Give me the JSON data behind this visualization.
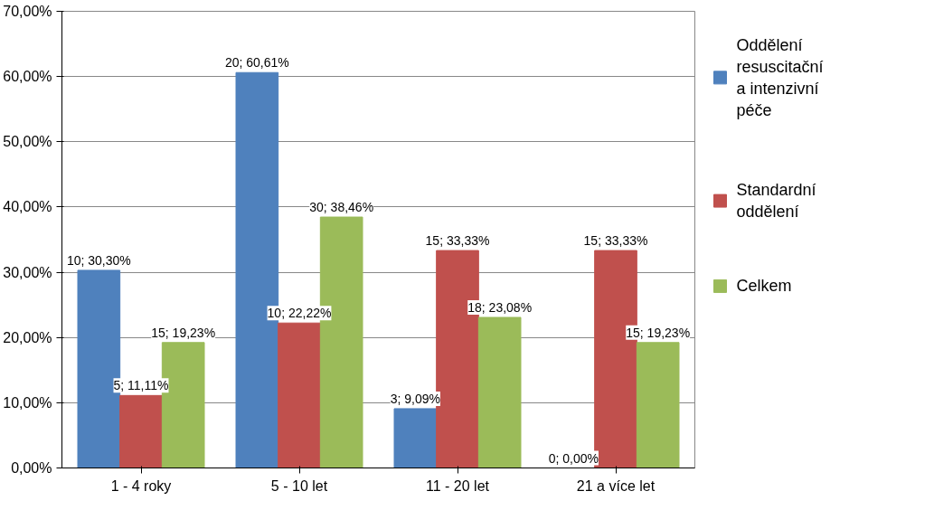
{
  "chart_data": {
    "type": "bar",
    "categories": [
      "1 - 4 roky",
      "5 - 10 let",
      "11 - 20 let",
      "21 a více let"
    ],
    "series": [
      {
        "name": "Oddělení resuscitační a intenzivní péče",
        "color": "#4f81bd",
        "values": [
          30.3,
          60.61,
          9.09,
          0.0
        ],
        "value_labels": [
          "10; 30,30%",
          "20; 60,61%",
          "3; 9,09%",
          "0; 0,00%"
        ]
      },
      {
        "name": "Standardní oddělení",
        "color": "#c0504d",
        "values": [
          11.11,
          22.22,
          33.33,
          33.33
        ],
        "value_labels": [
          "5; 11,11%",
          "10; 22,22%",
          "15; 33,33%",
          "15; 33,33%"
        ]
      },
      {
        "name": "Celkem",
        "color": "#9bbb59",
        "values": [
          19.23,
          38.46,
          23.08,
          19.23
        ],
        "value_labels": [
          "15; 19,23%",
          "30; 38,46%",
          "18; 23,08%",
          "15; 19,23%"
        ]
      }
    ],
    "ylim": [
      0,
      70
    ],
    "yticks": [
      {
        "value": 0,
        "label": "0,00%"
      },
      {
        "value": 10,
        "label": "10,00%"
      },
      {
        "value": 20,
        "label": "20,00%"
      },
      {
        "value": 30,
        "label": "30,00%"
      },
      {
        "value": 40,
        "label": "40,00%"
      },
      {
        "value": 50,
        "label": "50,00%"
      },
      {
        "value": 60,
        "label": "60,00%"
      },
      {
        "value": 70,
        "label": "70,00%"
      }
    ],
    "grid": "y",
    "legend": "right"
  }
}
